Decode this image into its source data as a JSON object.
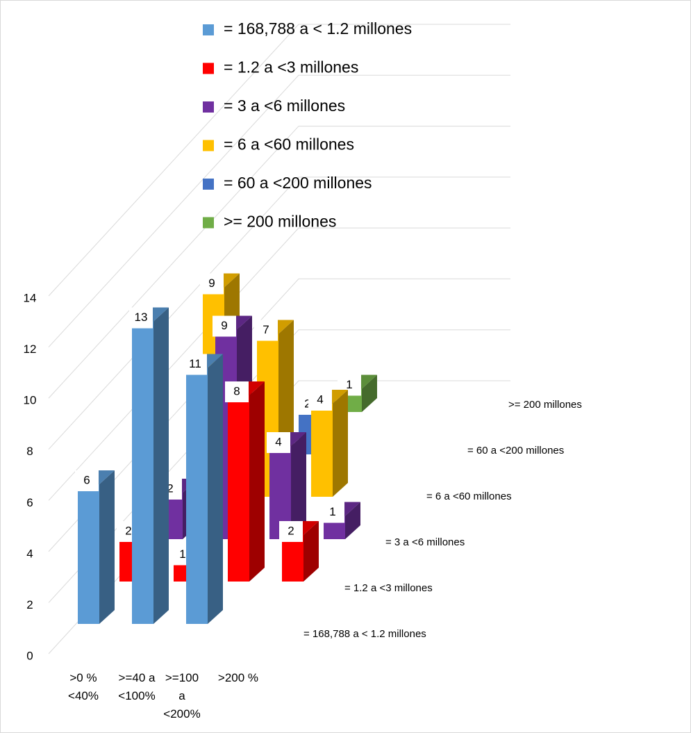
{
  "chart_data": {
    "type": "bar3d",
    "categories": [
      ">0 %\n<40%",
      ">=40 a\n<100%",
      ">=100\na\n<200%",
      ">200 %"
    ],
    "series": [
      {
        "name": "= 168,788 a < 1.2 millones",
        "color": "#5b9bd5",
        "values": [
          6,
          13,
          11,
          null
        ]
      },
      {
        "name": "= 1.2  a <3 millones",
        "color": "#ff0000",
        "values": [
          2,
          1,
          8,
          2
        ]
      },
      {
        "name": "= 3  a <6 millones",
        "color": "#7030a0",
        "values": [
          2,
          9,
          4,
          1
        ]
      },
      {
        "name": "= 6  a <60 millones",
        "color": "#ffc000",
        "values": [
          9,
          7,
          4,
          null
        ]
      },
      {
        "name": "= 60  a <200 millones",
        "color": "#4472c4",
        "values": [
          null,
          2,
          null,
          null
        ]
      },
      {
        "name": ">= 200 millones",
        "color": "#70ad47",
        "values": [
          null,
          1,
          null,
          null
        ]
      }
    ],
    "ylim": [
      0,
      14
    ],
    "yticks": [
      0,
      2,
      4,
      6,
      8,
      10,
      12,
      14
    ],
    "grid": true,
    "legend": "top"
  }
}
